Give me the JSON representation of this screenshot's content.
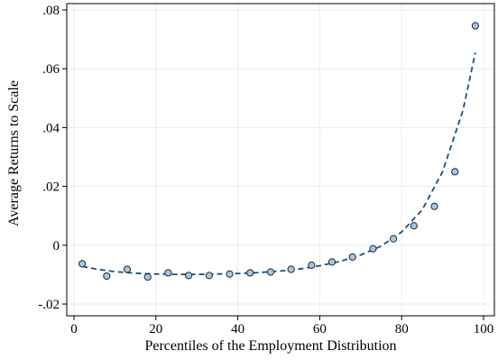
{
  "chart_data": {
    "type": "scatter",
    "xlabel": "Percentiles of the Employment Distribution",
    "ylabel": "Average Returns to Scale",
    "xlim": [
      0,
      100
    ],
    "ylim": [
      -0.02,
      0.08
    ],
    "xticks": [
      0,
      20,
      40,
      60,
      80,
      100
    ],
    "xtick_labels": [
      "0",
      "20",
      "40",
      "60",
      "80",
      "100"
    ],
    "yticks": [
      -0.02,
      0,
      0.02,
      0.04,
      0.06,
      0.08
    ],
    "ytick_labels": [
      "-.02",
      "0",
      ".02",
      ".04",
      ".06",
      ".08"
    ],
    "grid": true,
    "series": [
      {
        "kind": "points",
        "marker_fill": "#a9c6e0",
        "marker_stroke": "#1a2a3a",
        "x": [
          2,
          8,
          13,
          18,
          23,
          28,
          33,
          38,
          43,
          48,
          53,
          58,
          63,
          68,
          73,
          78,
          83,
          88,
          93,
          98
        ],
        "y": [
          -0.0063,
          -0.0105,
          -0.0082,
          -0.0108,
          -0.0094,
          -0.0103,
          -0.0103,
          -0.0098,
          -0.0094,
          -0.0091,
          -0.0082,
          -0.0068,
          -0.0057,
          -0.004,
          -0.0012,
          0.0022,
          0.0066,
          0.0132,
          0.025,
          0.0746
        ]
      },
      {
        "kind": "fitted-curve",
        "line_color": "#1f4e79",
        "line_style": "dashed",
        "x": [
          2,
          5,
          10,
          15,
          20,
          25,
          30,
          35,
          40,
          45,
          50,
          55,
          60,
          65,
          70,
          75,
          80,
          85,
          90,
          95,
          98
        ],
        "y": [
          -0.0072,
          -0.008,
          -0.009,
          -0.0095,
          -0.0098,
          -0.0099,
          -0.0099,
          -0.0098,
          -0.0096,
          -0.0093,
          -0.0088,
          -0.0081,
          -0.007,
          -0.0055,
          -0.0033,
          -0.0003,
          0.0045,
          0.012,
          0.025,
          0.046,
          0.0655
        ]
      }
    ]
  }
}
